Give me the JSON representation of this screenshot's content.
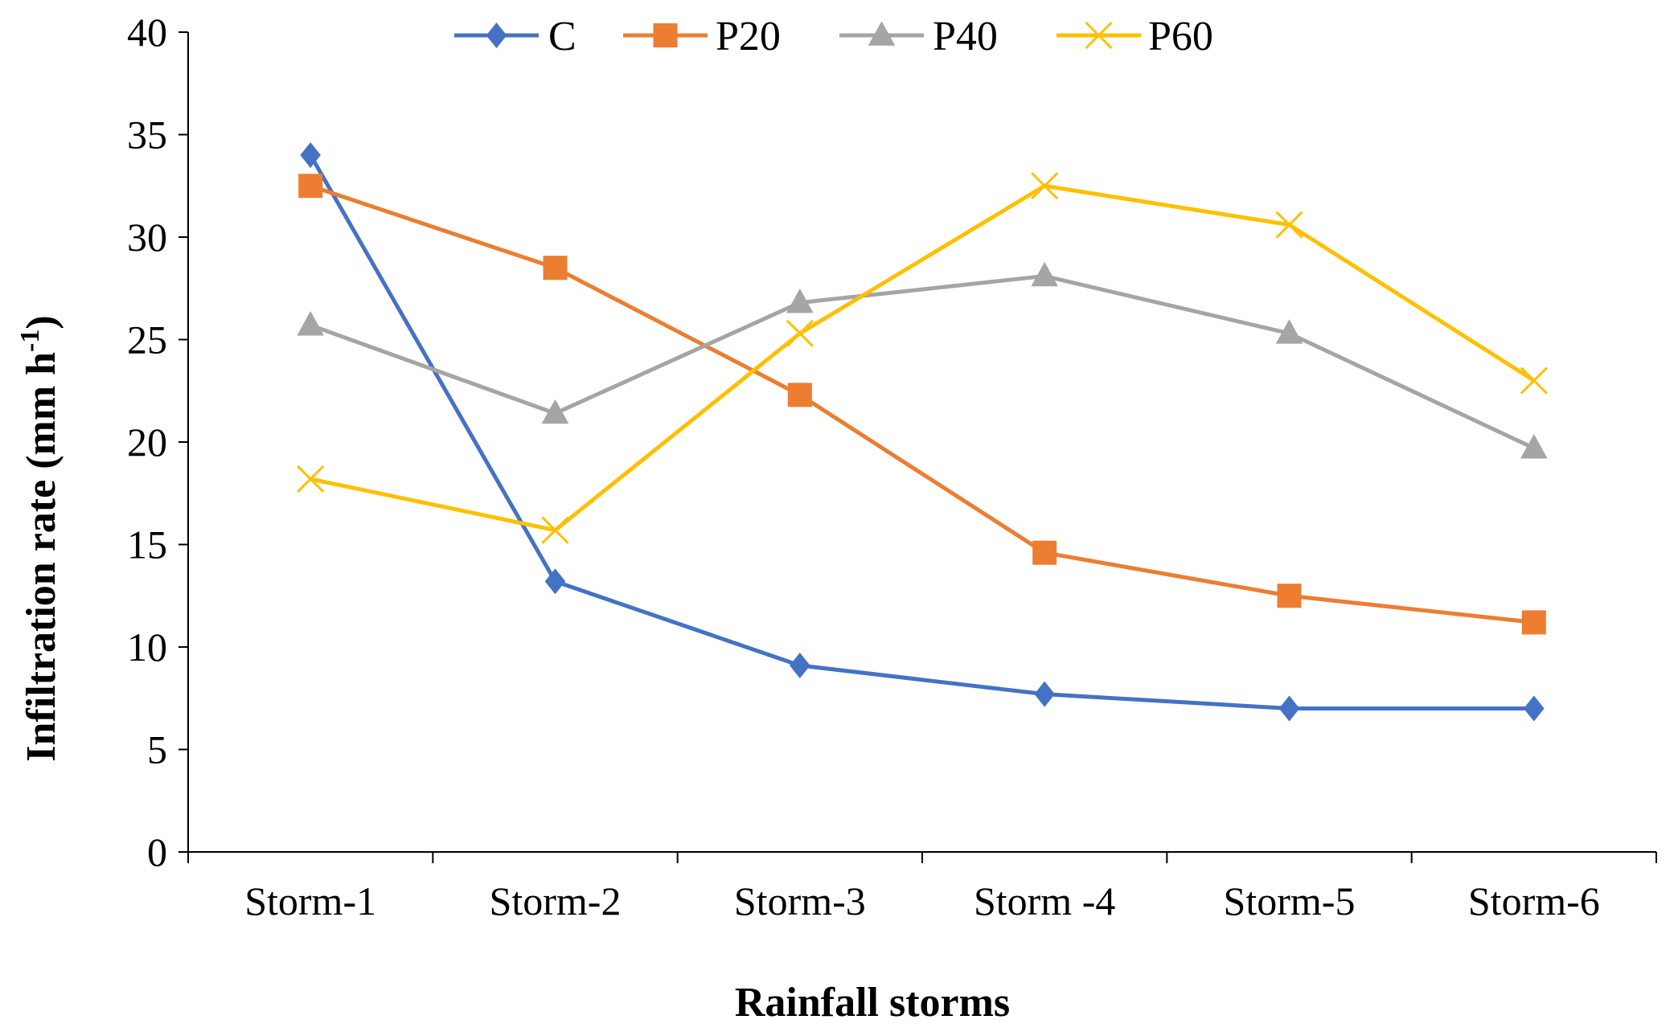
{
  "chart_data": {
    "type": "line",
    "title": "",
    "xlabel": "Rainfall storms",
    "ylabel": {
      "main": "Infiltration rate (mm h",
      "superscript": "-1",
      "close": ")"
    },
    "ylim": [
      0,
      40
    ],
    "yticks": [
      "0",
      "5",
      "10",
      "15",
      "20",
      "25",
      "30",
      "35",
      "40"
    ],
    "categories": [
      "Storm-1",
      "Storm-2",
      "Storm-3",
      "Storm -4",
      "Storm-5",
      "Storm-6"
    ],
    "grid": false,
    "legend_position": "top",
    "series": [
      {
        "name": "C",
        "color": "#4472C4",
        "marker": "diamond",
        "values": [
          34.0,
          13.2,
          9.1,
          7.7,
          7.0,
          7.0
        ]
      },
      {
        "name": "P20",
        "color": "#ED7D31",
        "marker": "square",
        "values": [
          32.5,
          28.5,
          22.3,
          14.6,
          12.5,
          11.2
        ]
      },
      {
        "name": "P40",
        "color": "#A5A5A5",
        "marker": "triangle",
        "values": [
          25.7,
          21.4,
          26.8,
          28.1,
          25.3,
          19.7
        ]
      },
      {
        "name": "P60",
        "color": "#FFC000",
        "marker": "x",
        "values": [
          18.2,
          15.7,
          25.3,
          32.5,
          30.6,
          23.0
        ]
      }
    ]
  }
}
